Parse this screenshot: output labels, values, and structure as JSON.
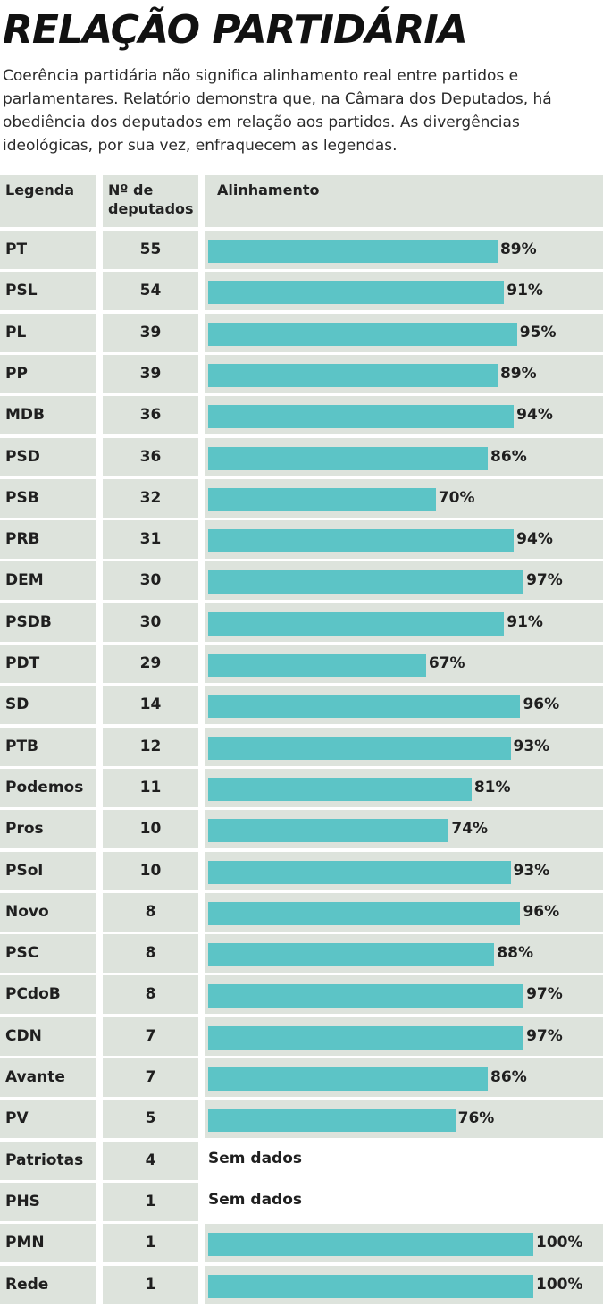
{
  "title": "RELAÇÃO PARTIDÁRIA",
  "subtitle": "Coerência partidária não significa alinhamento real entre partidos e parlamentares. Relatório demonstra que, na Câmara dos Deputados, há obediência dos deputados em relação aos partidos. As divergências ideológicas, por sua vez, enfraquecem as legendas.",
  "colors": {
    "bar": "#5cc4c6",
    "cell_background": "#dde3dc"
  },
  "headers": {
    "party": "Legenda",
    "count": "Nº de deputados",
    "alignment": "Alinhamento"
  },
  "chart_data": {
    "type": "bar",
    "orientation": "horizontal",
    "title": "RELAÇÃO PARTIDÁRIA",
    "xlabel": "Alinhamento",
    "xlim": [
      0,
      100
    ],
    "no_data_label": "Sem dados",
    "rows": [
      {
        "party": "PT",
        "deputies": 55,
        "alignment": 89,
        "label": "89%"
      },
      {
        "party": "PSL",
        "deputies": 54,
        "alignment": 91,
        "label": "91%"
      },
      {
        "party": "PL",
        "deputies": 39,
        "alignment": 95,
        "label": "95%"
      },
      {
        "party": "PP",
        "deputies": 39,
        "alignment": 89,
        "label": "89%"
      },
      {
        "party": "MDB",
        "deputies": 36,
        "alignment": 94,
        "label": "94%"
      },
      {
        "party": "PSD",
        "deputies": 36,
        "alignment": 86,
        "label": "86%"
      },
      {
        "party": "PSB",
        "deputies": 32,
        "alignment": 70,
        "label": "70%"
      },
      {
        "party": "PRB",
        "deputies": 31,
        "alignment": 94,
        "label": "94%"
      },
      {
        "party": "DEM",
        "deputies": 30,
        "alignment": 97,
        "label": "97%"
      },
      {
        "party": "PSDB",
        "deputies": 30,
        "alignment": 91,
        "label": "91%"
      },
      {
        "party": "PDT",
        "deputies": 29,
        "alignment": 67,
        "label": "67%"
      },
      {
        "party": "SD",
        "deputies": 14,
        "alignment": 96,
        "label": "96%"
      },
      {
        "party": "PTB",
        "deputies": 12,
        "alignment": 93,
        "label": "93%"
      },
      {
        "party": "Podemos",
        "deputies": 11,
        "alignment": 81,
        "label": "81%"
      },
      {
        "party": "Pros",
        "deputies": 10,
        "alignment": 74,
        "label": "74%"
      },
      {
        "party": "PSol",
        "deputies": 10,
        "alignment": 93,
        "label": "93%"
      },
      {
        "party": "Novo",
        "deputies": 8,
        "alignment": 96,
        "label": "96%"
      },
      {
        "party": "PSC",
        "deputies": 8,
        "alignment": 88,
        "label": "88%"
      },
      {
        "party": "PCdoB",
        "deputies": 8,
        "alignment": 97,
        "label": "97%"
      },
      {
        "party": "CDN",
        "deputies": 7,
        "alignment": 97,
        "label": "97%"
      },
      {
        "party": "Avante",
        "deputies": 7,
        "alignment": 86,
        "label": "86%"
      },
      {
        "party": "PV",
        "deputies": 5,
        "alignment": 76,
        "label": "76%"
      },
      {
        "party": "Patriotas",
        "deputies": 4,
        "alignment": null,
        "label": "Sem dados"
      },
      {
        "party": "PHS",
        "deputies": 1,
        "alignment": null,
        "label": "Sem dados"
      },
      {
        "party": "PMN",
        "deputies": 1,
        "alignment": 100,
        "label": "100%"
      },
      {
        "party": "Rede",
        "deputies": 1,
        "alignment": 100,
        "label": "100%"
      }
    ]
  }
}
